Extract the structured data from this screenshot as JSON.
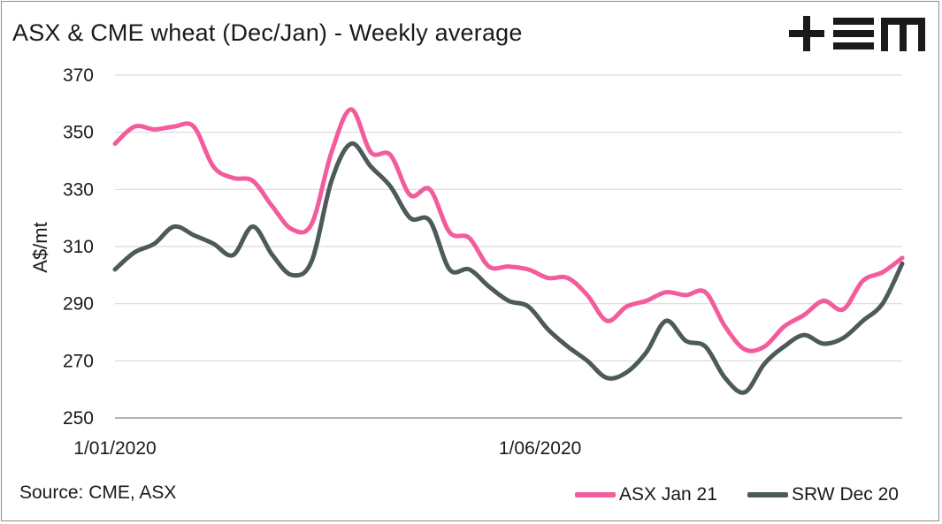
{
  "title": "ASX & CME wheat (Dec/Jan) - Weekly average",
  "logo": {
    "name": "tem-logo",
    "text": "+EM"
  },
  "source": "Source: CME, ASX",
  "chart_data": {
    "type": "line",
    "ylabel": "A$/mt",
    "xlabel": "",
    "ylim": [
      250,
      370
    ],
    "yticks": [
      250,
      270,
      290,
      310,
      330,
      350,
      370
    ],
    "xticks": [
      {
        "label": "1/01/2020",
        "week": 0
      },
      {
        "label": "1/06/2020",
        "week": 21.6
      }
    ],
    "grid": true,
    "legend_position": "bottom-right",
    "series": [
      {
        "name": "ASX Jan 21",
        "color": "#f25c9d",
        "values": [
          346,
          352,
          351,
          352,
          352,
          338,
          334,
          333,
          324,
          316,
          318,
          343,
          358,
          343,
          342,
          328,
          330,
          315,
          313,
          303,
          303,
          302,
          299,
          299,
          293,
          284,
          289,
          291,
          294,
          293,
          294,
          282,
          274,
          275,
          282,
          286,
          291,
          288,
          298,
          301,
          306
        ]
      },
      {
        "name": "SRW Dec 20",
        "color": "#4d5a5a",
        "values": [
          302,
          308,
          311,
          317,
          314,
          311,
          307,
          317,
          307,
          300,
          305,
          333,
          346,
          338,
          331,
          320,
          319,
          302,
          302,
          296,
          291,
          289,
          281,
          275,
          270,
          264,
          266,
          273,
          284,
          277,
          275,
          264,
          259,
          269,
          275,
          279,
          276,
          278,
          284,
          290,
          304
        ]
      }
    ]
  }
}
